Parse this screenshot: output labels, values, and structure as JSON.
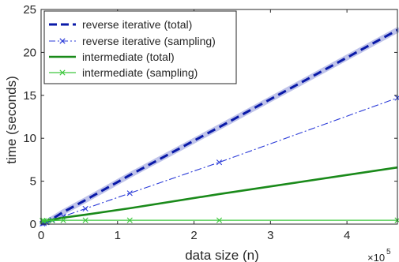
{
  "chart_data": {
    "type": "line",
    "xlabel": "data size (n)",
    "ylabel": "time (seconds)",
    "x_exponent_label": "×10",
    "x_exponent_power": "5",
    "xlim": [
      0,
      466000
    ],
    "ylim": [
      0,
      25
    ],
    "x_ticks": [
      0,
      100000,
      200000,
      300000,
      400000
    ],
    "x_tick_labels": [
      "0",
      "1",
      "2",
      "3",
      "4"
    ],
    "y_ticks": [
      0,
      5,
      10,
      15,
      20,
      25
    ],
    "y_tick_labels": [
      "0",
      "5",
      "10",
      "15",
      "20",
      "25"
    ],
    "legend_position": "top-left",
    "series": [
      {
        "name": "reverse iterative (total)",
        "color": "#0a1aa8",
        "style": "dashed-thick",
        "x": [
          1800,
          3600,
          7200,
          14500,
          29000,
          58000,
          116000,
          233000,
          466000
        ],
        "y": [
          0.1,
          0.15,
          0.25,
          0.6,
          1.4,
          2.8,
          5.7,
          11.3,
          22.6
        ]
      },
      {
        "name": "reverse iterative (sampling)",
        "color": "#2a3ad8",
        "style": "dashdot-x",
        "x": [
          1800,
          3600,
          7200,
          14500,
          29000,
          58000,
          116000,
          233000,
          466000
        ],
        "y": [
          0.05,
          0.1,
          0.2,
          0.5,
          0.9,
          1.8,
          3.6,
          7.2,
          14.7
        ]
      },
      {
        "name": "intermediate (total)",
        "color": "#1a8a1a",
        "style": "solid-thick",
        "x": [
          1800,
          3600,
          7200,
          14500,
          29000,
          58000,
          116000,
          233000,
          466000
        ],
        "y": [
          0.35,
          0.38,
          0.4,
          0.5,
          0.75,
          1.1,
          1.85,
          3.5,
          6.6
        ]
      },
      {
        "name": "intermediate (sampling)",
        "color": "#3ec83e",
        "style": "solid-x",
        "x": [
          1800,
          3600,
          7200,
          14500,
          29000,
          58000,
          116000,
          233000,
          466000
        ],
        "y": [
          0.4,
          0.38,
          0.4,
          0.42,
          0.45,
          0.45,
          0.45,
          0.45,
          0.45
        ]
      }
    ]
  }
}
